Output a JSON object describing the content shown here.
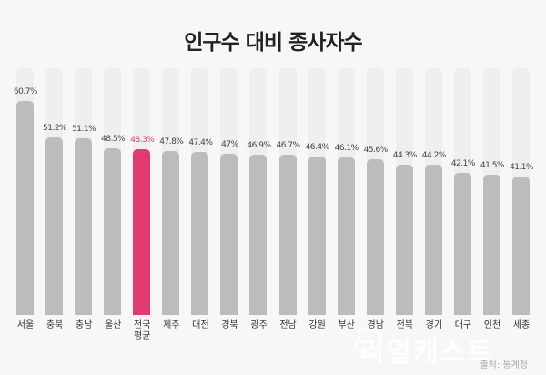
{
  "title": "인구수 대비 종사자수",
  "source": "출처: 통계청",
  "watermark": "리얼캐스트",
  "colors": {
    "bar": "#bcbcbc",
    "highlight": "#e03a6e",
    "track": "#efeff1"
  },
  "chart_data": {
    "type": "bar",
    "title": "인구수 대비 종사자수",
    "xlabel": "",
    "ylabel": "",
    "unit": "%",
    "grid": false,
    "highlight_category": "전국 평균",
    "categories": [
      "서울",
      "충북",
      "충남",
      "울산",
      "전국 평균",
      "제주",
      "대전",
      "경북",
      "광주",
      "전남",
      "강원",
      "부산",
      "경남",
      "전북",
      "경기",
      "대구",
      "인천",
      "세종"
    ],
    "values": [
      60.7,
      51.2,
      51.1,
      48.5,
      48.3,
      47.8,
      47.4,
      47.0,
      46.9,
      46.7,
      46.4,
      46.1,
      45.6,
      44.3,
      44.2,
      42.1,
      41.5,
      41.1
    ],
    "labels": [
      "60.7%",
      "51.2%",
      "51.1%",
      "48.5%",
      "48.3%",
      "47.8%",
      "47.4%",
      "47%",
      "46.9%",
      "46.7%",
      "46.4%",
      "46.1%",
      "45.6%",
      "44.3%",
      "44.2%",
      "42.1%",
      "41.5%",
      "41.1%"
    ],
    "display_categories": [
      "서울",
      "충북",
      "충남",
      "울산",
      "전국\n평균",
      "제주",
      "대전",
      "경북",
      "광주",
      "전남",
      "강원",
      "부산",
      "경남",
      "전북",
      "경기",
      "대구",
      "인천",
      "세종"
    ]
  }
}
